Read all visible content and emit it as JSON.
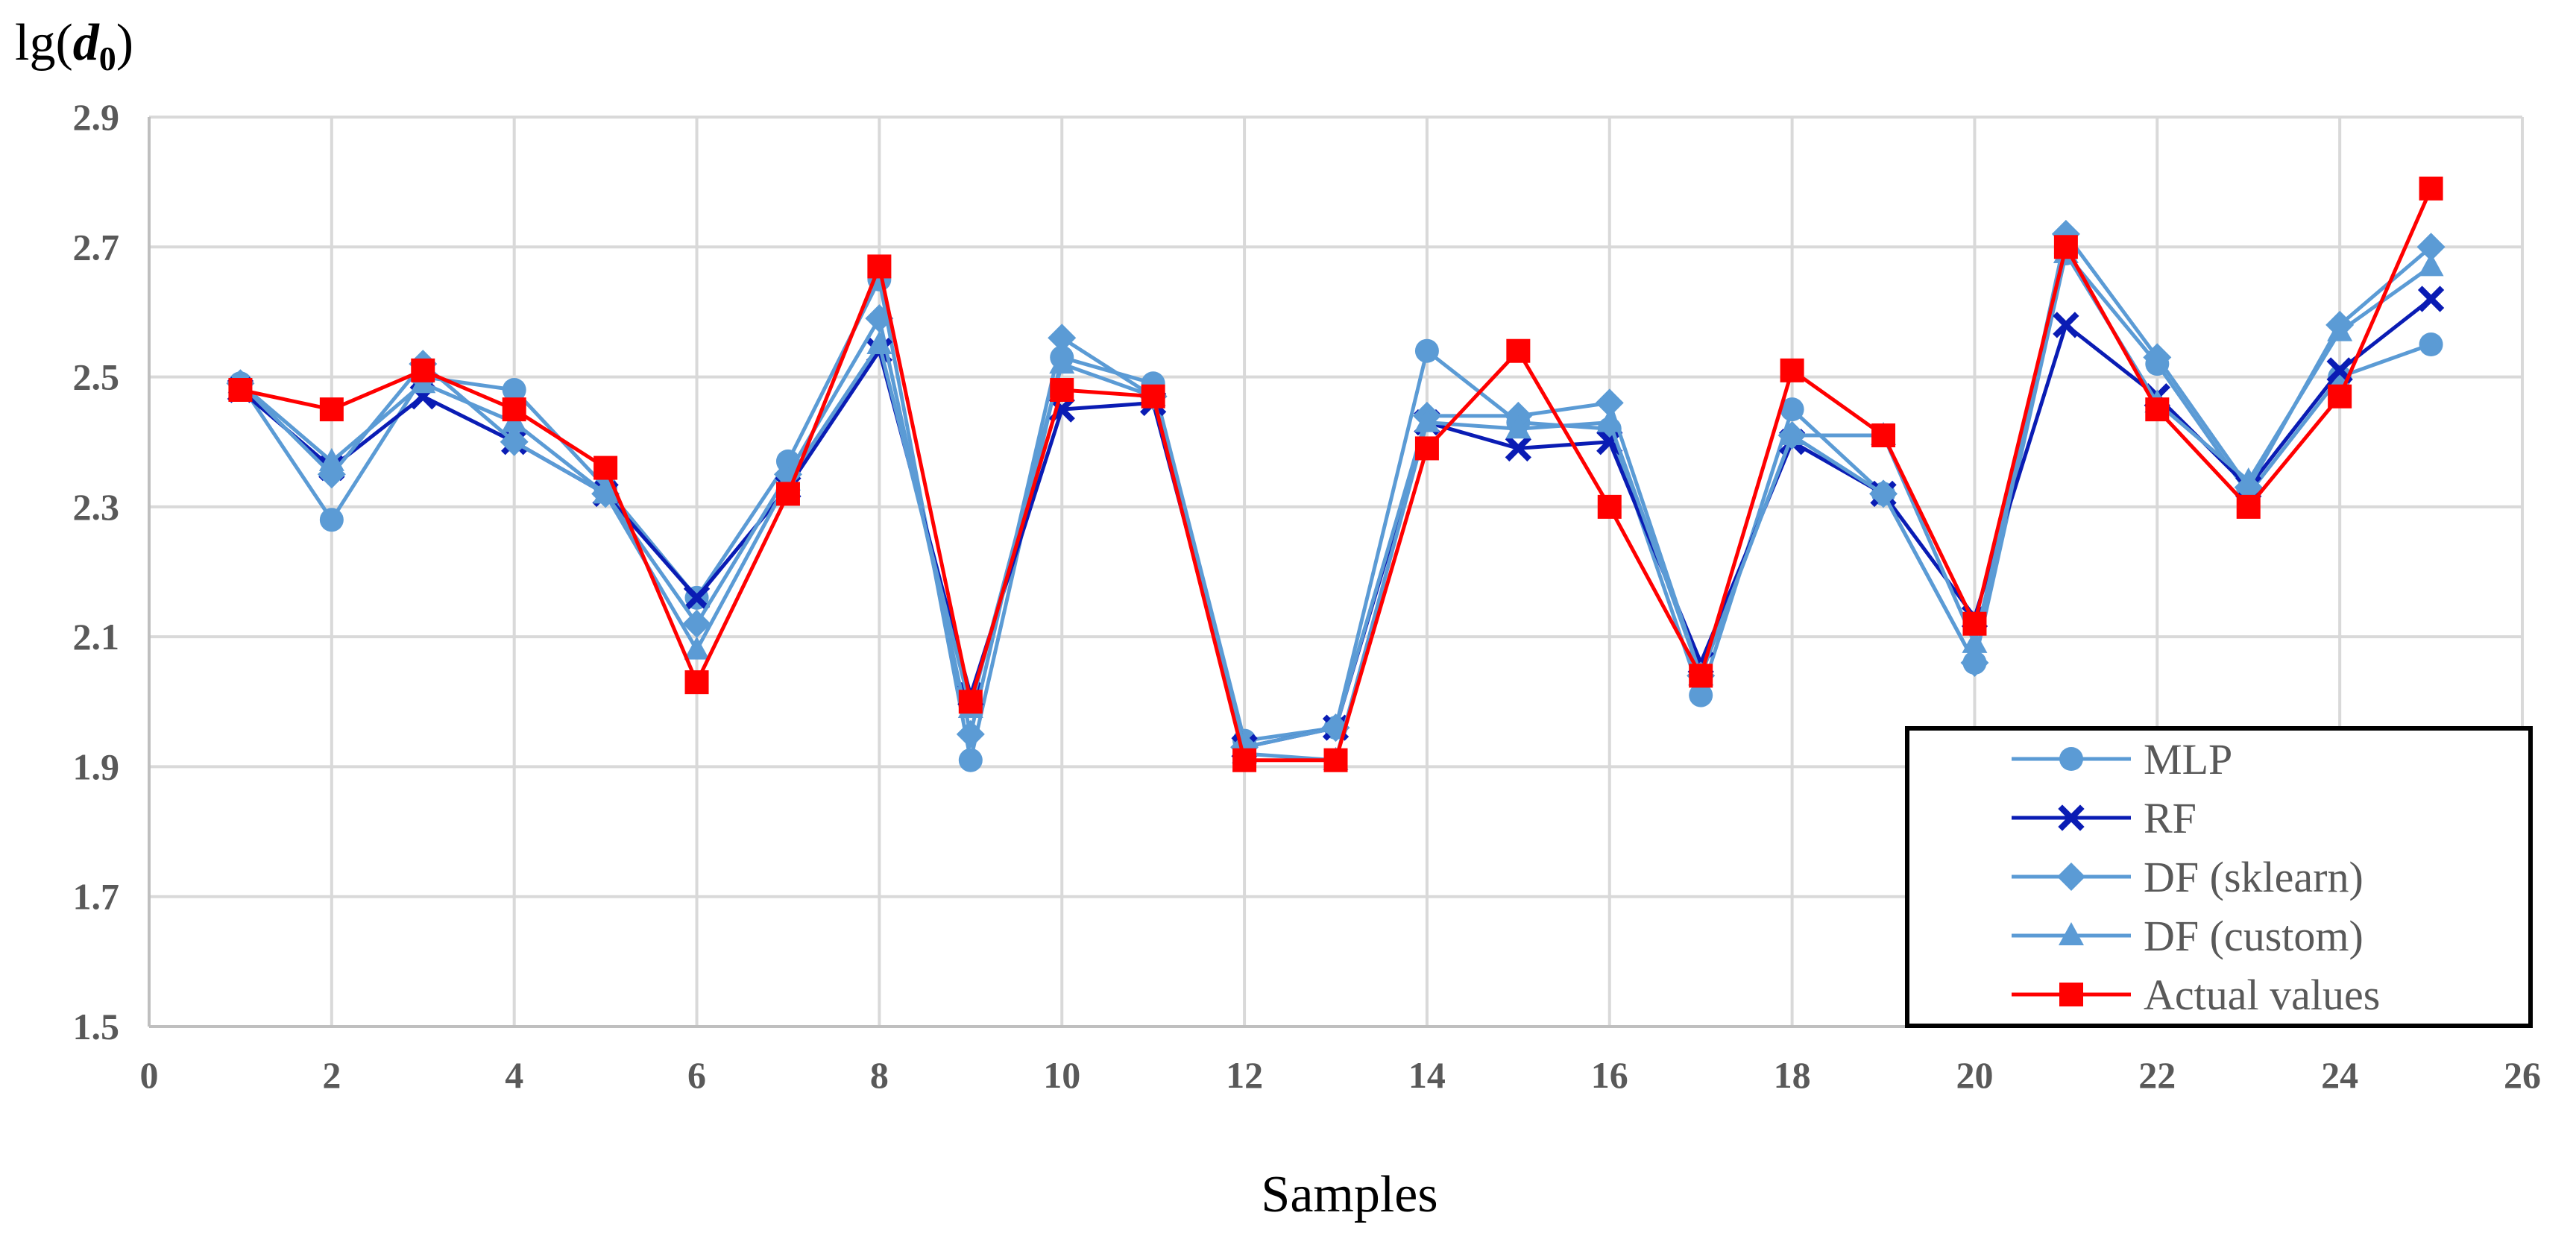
{
  "chart_data": {
    "type": "line",
    "title": "",
    "ylabel": {
      "prefix": "lg(",
      "var": "d",
      "sub": "0",
      "suffix": ")"
    },
    "xlabel": "Samples",
    "xlim": [
      0,
      26
    ],
    "ylim": [
      1.5,
      2.9
    ],
    "xticks": [
      0,
      2,
      4,
      6,
      8,
      10,
      12,
      14,
      16,
      18,
      20,
      22,
      24,
      26
    ],
    "yticks": [
      1.5,
      1.7,
      1.9,
      2.1,
      2.3,
      2.5,
      2.7,
      2.9
    ],
    "grid": true,
    "legend_position": "bottom-right",
    "x": [
      1,
      2,
      3,
      4,
      5,
      6,
      7,
      8,
      9,
      10,
      11,
      12,
      13,
      14,
      15,
      16,
      17,
      18,
      19,
      20,
      21,
      22,
      23,
      24,
      25
    ],
    "series": [
      {
        "name": "MLP",
        "color": "#5b9bd5",
        "marker": "circle",
        "values": [
          2.49,
          2.28,
          2.5,
          2.48,
          2.33,
          2.16,
          2.37,
          2.65,
          1.91,
          2.53,
          2.49,
          1.94,
          1.96,
          2.54,
          2.43,
          2.42,
          2.01,
          2.45,
          2.32,
          2.06,
          2.69,
          2.52,
          2.32,
          2.5,
          2.55
        ]
      },
      {
        "name": "RF",
        "color": "#0a1cb4",
        "marker": "x",
        "values": [
          2.48,
          2.36,
          2.47,
          2.4,
          2.32,
          2.16,
          2.33,
          2.54,
          2.01,
          2.45,
          2.46,
          1.93,
          1.96,
          2.43,
          2.39,
          2.4,
          2.06,
          2.4,
          2.32,
          2.13,
          2.58,
          2.47,
          2.33,
          2.51,
          2.62
        ]
      },
      {
        "name": "DF (sklearn)",
        "color": "#5b9bd5",
        "marker": "diamond",
        "values": [
          2.49,
          2.35,
          2.52,
          2.4,
          2.32,
          2.12,
          2.35,
          2.59,
          1.95,
          2.56,
          2.47,
          1.93,
          1.96,
          2.44,
          2.44,
          2.46,
          2.04,
          2.41,
          2.32,
          2.06,
          2.72,
          2.53,
          2.33,
          2.58,
          2.7
        ]
      },
      {
        "name": "DF (custom)",
        "color": "#5b9bd5",
        "marker": "triangle",
        "values": [
          2.49,
          2.37,
          2.49,
          2.43,
          2.32,
          2.08,
          2.34,
          2.55,
          1.99,
          2.52,
          2.47,
          1.92,
          1.91,
          2.43,
          2.42,
          2.43,
          2.04,
          2.41,
          2.41,
          2.09,
          2.69,
          2.46,
          2.34,
          2.57,
          2.67
        ]
      },
      {
        "name": "Actual values",
        "color": "#ff0000",
        "marker": "square",
        "values": [
          2.48,
          2.45,
          2.51,
          2.45,
          2.36,
          2.03,
          2.32,
          2.67,
          2.0,
          2.48,
          2.47,
          1.91,
          1.91,
          2.39,
          2.54,
          2.3,
          2.04,
          2.51,
          2.41,
          2.12,
          2.7,
          2.45,
          2.3,
          2.47,
          2.79
        ]
      }
    ]
  }
}
